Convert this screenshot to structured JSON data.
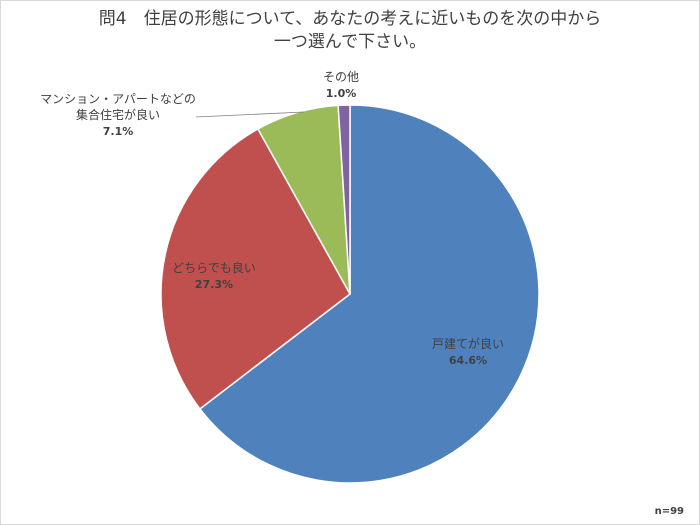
{
  "chart_data": {
    "type": "pie",
    "title_lines": [
      "問4　住居の形態について、あなたの考えに近いものを次の中から",
      "一つ選んで下さい。"
    ],
    "note": "n=99",
    "slices": [
      {
        "name": "戸建てが良い",
        "label_lines": [
          "戸建てが良い"
        ],
        "value": 64.6,
        "value_label": "64.6%",
        "color": "#4F81BD"
      },
      {
        "name": "どちらでも良い",
        "label_lines": [
          "どちらでも良い"
        ],
        "value": 27.3,
        "value_label": "27.3%",
        "color": "#C0504D"
      },
      {
        "name": "マンション・アパートなどの集合住宅が良い",
        "label_lines": [
          "マンション・アパートなどの",
          "集合住宅が良い"
        ],
        "value": 7.1,
        "value_label": "7.1%",
        "color": "#9BBB59"
      },
      {
        "name": "その他",
        "label_lines": [
          "その他"
        ],
        "value": 1.0,
        "value_label": "1.0%",
        "color": "#8064A2"
      }
    ]
  }
}
